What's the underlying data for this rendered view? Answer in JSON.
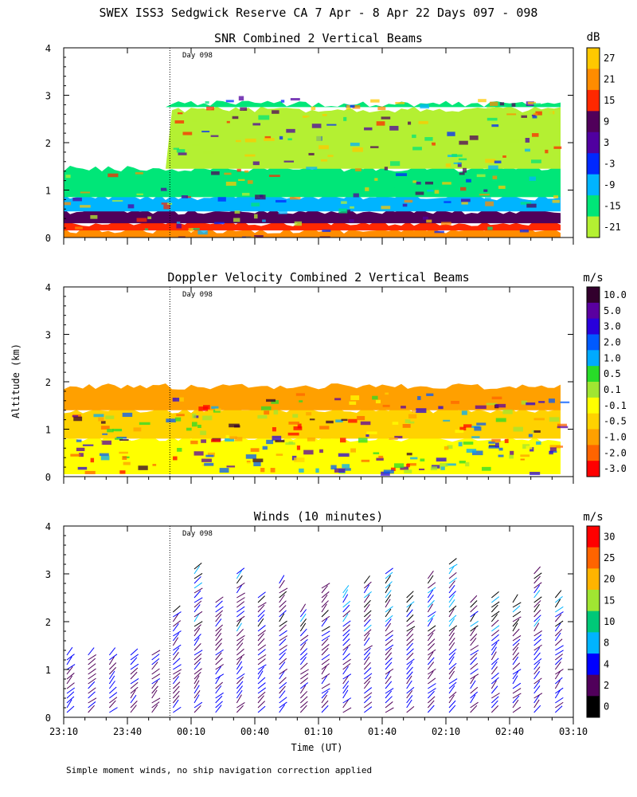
{
  "title": "SWEX ISS3 Sedgwick Reserve CA   7 Apr -  8 Apr 22 Days 097 - 098",
  "footnote": "Simple moment winds, no ship navigation correction applied",
  "chart_data": {
    "type": "heatmap",
    "shared": {
      "ylabel": "Altitude (km)",
      "xlabel": "Time (UT)",
      "x_tick_labels": [
        "23:10",
        "23:40",
        "00:10",
        "00:40",
        "01:10",
        "01:40",
        "02:10",
        "02:40",
        "03:10"
      ],
      "y_tick_labels": [
        "0",
        "1",
        "2",
        "3",
        "4"
      ],
      "xlim_minutes_from_2310": [
        0,
        240
      ],
      "ylim_km": [
        0,
        4
      ],
      "day_marker": {
        "label": "Day 098",
        "time": "00:00",
        "minutes_from_2310": 50
      }
    },
    "panels": [
      {
        "id": "snr",
        "title": "SNR Combined 2 Vertical Beams",
        "unit": "dB",
        "colorbar_labels": [
          "27",
          "21",
          "15",
          "9",
          "3",
          "-3",
          "-9",
          "-15",
          "-21"
        ],
        "colorbar_colors": [
          "#ffc800",
          "#ff8c00",
          "#ff2800",
          "#50005a",
          "#5000a0",
          "#0028ff",
          "#00b4ff",
          "#00e678",
          "#b4f032"
        ],
        "layers_km": [
          {
            "alt_range": [
              0.0,
              0.15
            ],
            "class": "21"
          },
          {
            "alt_range": [
              0.15,
              0.3
            ],
            "class": "15"
          },
          {
            "alt_range": [
              0.3,
              0.55
            ],
            "class": "9"
          },
          {
            "alt_range": [
              0.55,
              0.85
            ],
            "class": "-9"
          },
          {
            "alt_range": [
              0.85,
              1.45
            ],
            "class": "-15"
          },
          {
            "alt_range": [
              1.45,
              2.7
            ],
            "class": "-21"
          },
          {
            "alt_range": [
              2.75,
              2.82
            ],
            "class": "-15"
          }
        ]
      },
      {
        "id": "doppler",
        "title": "Doppler Velocity Combined 2 Vertical Beams",
        "unit": "m/s",
        "colorbar_labels": [
          "10.0",
          "5.0",
          "3.0",
          "2.0",
          "1.0",
          "0.5",
          "0.1",
          "-0.1",
          "-0.5",
          "-1.0",
          "-2.0",
          "-3.0"
        ],
        "colorbar_colors": [
          "#32002d",
          "#5a00a0",
          "#2800dc",
          "#005aff",
          "#00aaff",
          "#28dc28",
          "#a0e632",
          "#ffff00",
          "#ffd200",
          "#ffa000",
          "#ff6400",
          "#ff0000"
        ],
        "layers_km": [
          {
            "alt_range": [
              0.05,
              0.8
            ],
            "class": "-0.1"
          },
          {
            "alt_range": [
              0.8,
              1.4
            ],
            "class": "-0.5"
          },
          {
            "alt_range": [
              1.4,
              1.9
            ],
            "class": "-1.0"
          }
        ]
      },
      {
        "id": "winds",
        "title": "Winds (10 minutes)",
        "unit": "m/s",
        "colorbar_labels": [
          "30",
          "25",
          "20",
          "15",
          "10",
          "8",
          "4",
          "2",
          "0"
        ],
        "colorbar_colors": [
          "#ff0000",
          "#ff6400",
          "#ffb400",
          "#a0e632",
          "#00c878",
          "#00b4ff",
          "#0000ff",
          "#50005a",
          "#000000"
        ]
      }
    ]
  }
}
